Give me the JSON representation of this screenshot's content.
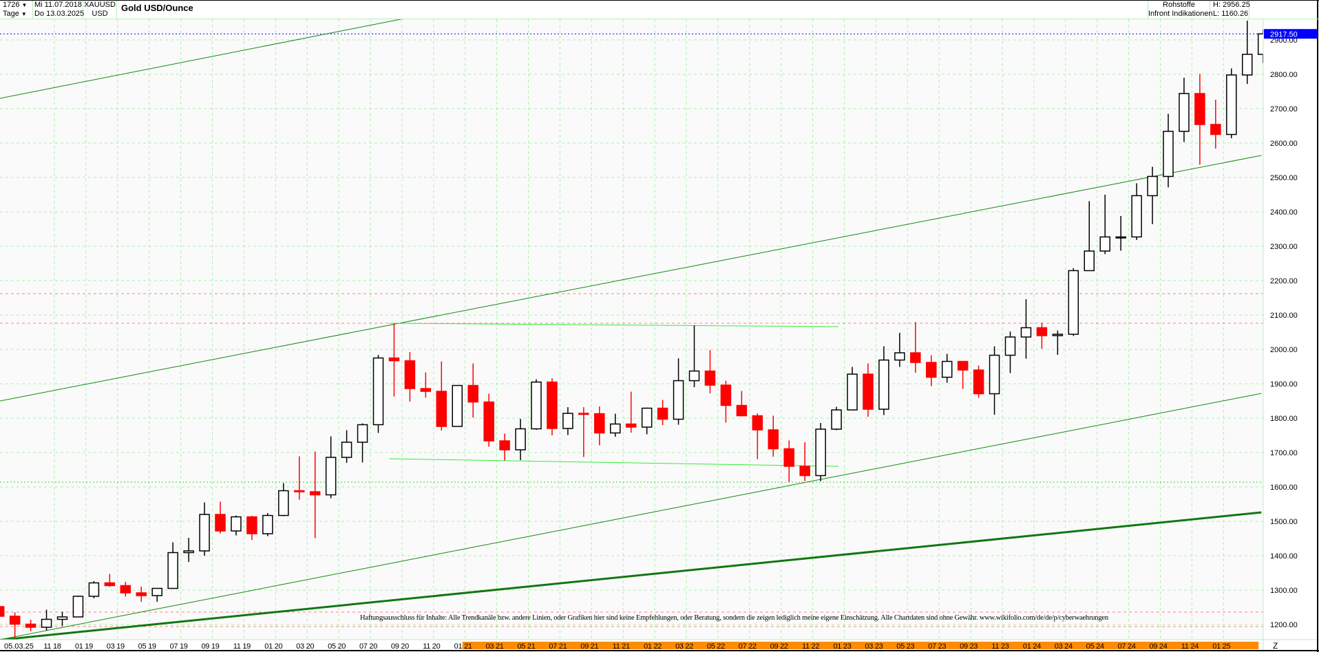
{
  "header": {
    "bars_count": "1726",
    "period": "Tage",
    "start_date": "Mi 11.07.2018",
    "end_date": "Do 13.03.2025",
    "symbol": "XAUUSD",
    "currency": "USD",
    "category": "Rohstoffe",
    "source": "Infront Indikationen",
    "high": "H: 2956.25",
    "low": "L: 1160.26",
    "dropdown_icon": "triangle-down"
  },
  "disclaimer": "Haftungsausschluss für Inhalte: Alle Trendkanäle bzw. andere Linien, oder Grafiken hier sind keine Empfehlungen, oder Beratung, sondern die zeigen lediglich meine eigene Einschätzung. Alle Chartdaten sind ohne Gewähr.  www.wikifolio.com/de/de/p/cyberwaehrungen",
  "chart_data": {
    "type": "candlestick",
    "title": "Gold USD/Ounce",
    "ylim": [
      1160,
      2970
    ],
    "yticks": [
      1200,
      1300,
      1400,
      1500,
      1600,
      1700,
      1800,
      1900,
      2000,
      2100,
      2200,
      2300,
      2400,
      2500,
      2600,
      2700,
      2800,
      2900
    ],
    "ytick_labels": [
      "1200.00",
      "1300.00",
      "1400.00",
      "1500.00",
      "1600.00",
      "1700.00",
      "1800.00",
      "1900.00",
      "2000.00",
      "2100.00",
      "2200.00",
      "2300.00",
      "2400.00",
      "2500.00",
      "2600.00",
      "2700.00",
      "2800.00",
      "2900.00"
    ],
    "first_xlabel": "05.03.25",
    "xticks": [
      {
        "date": "2018-11",
        "label": "11 18"
      },
      {
        "date": "2019-01",
        "label": "01 19"
      },
      {
        "date": "2019-03",
        "label": "03 19"
      },
      {
        "date": "2019-05",
        "label": "05 19"
      },
      {
        "date": "2019-07",
        "label": "07 19"
      },
      {
        "date": "2019-09",
        "label": "09 19"
      },
      {
        "date": "2019-11",
        "label": "11 19"
      },
      {
        "date": "2020-01",
        "label": "01 20"
      },
      {
        "date": "2020-03",
        "label": "03 20"
      },
      {
        "date": "2020-05",
        "label": "05 20"
      },
      {
        "date": "2020-07",
        "label": "07 20"
      },
      {
        "date": "2020-09",
        "label": "09 20"
      },
      {
        "date": "2020-11",
        "label": "11 20"
      },
      {
        "date": "2021-01",
        "label": "01 21"
      },
      {
        "date": "2021-03",
        "label": "03 21"
      },
      {
        "date": "2021-05",
        "label": "05 21"
      },
      {
        "date": "2021-07",
        "label": "07 21"
      },
      {
        "date": "2021-09",
        "label": "09 21"
      },
      {
        "date": "2021-11",
        "label": "11 21"
      },
      {
        "date": "2022-01",
        "label": "01 22"
      },
      {
        "date": "2022-03",
        "label": "03 22"
      },
      {
        "date": "2022-05",
        "label": "05 22"
      },
      {
        "date": "2022-07",
        "label": "07 22"
      },
      {
        "date": "2022-09",
        "label": "09 22"
      },
      {
        "date": "2022-11",
        "label": "11 22"
      },
      {
        "date": "2023-01",
        "label": "01 23"
      },
      {
        "date": "2023-03",
        "label": "03 23"
      },
      {
        "date": "2023-05",
        "label": "05 23"
      },
      {
        "date": "2023-07",
        "label": "07 23"
      },
      {
        "date": "2023-09",
        "label": "09 23"
      },
      {
        "date": "2023-11",
        "label": "11 23"
      },
      {
        "date": "2024-01",
        "label": "01 24"
      },
      {
        "date": "2024-03",
        "label": "03 24"
      },
      {
        "date": "2024-05",
        "label": "05 24"
      },
      {
        "date": "2024-07",
        "label": "07 24"
      },
      {
        "date": "2024-09",
        "label": "09 24"
      },
      {
        "date": "2024-11",
        "label": "11 24"
      },
      {
        "date": "2025-01",
        "label": "01 25"
      }
    ],
    "xaxis_highlight": {
      "from": "2021-01",
      "to": "2025-03-13",
      "color": "#ff8c00"
    },
    "xaxis_end_label": "Z",
    "ohlc_monthly": [
      [
        "2018-07",
        1252,
        1265,
        1211,
        1224
      ],
      [
        "2018-08",
        1224,
        1235,
        1160,
        1201
      ],
      [
        "2018-09",
        1201,
        1214,
        1180,
        1192
      ],
      [
        "2018-10",
        1192,
        1243,
        1182,
        1215
      ],
      [
        "2018-11",
        1215,
        1237,
        1196,
        1222
      ],
      [
        "2018-12",
        1222,
        1284,
        1221,
        1282
      ],
      [
        "2019-01",
        1282,
        1326,
        1276,
        1321
      ],
      [
        "2019-02",
        1321,
        1347,
        1310,
        1313
      ],
      [
        "2019-03",
        1313,
        1324,
        1281,
        1292
      ],
      [
        "2019-04",
        1292,
        1310,
        1266,
        1284
      ],
      [
        "2019-05",
        1284,
        1306,
        1266,
        1305
      ],
      [
        "2019-06",
        1305,
        1439,
        1304,
        1409
      ],
      [
        "2019-07",
        1409,
        1452,
        1382,
        1414
      ],
      [
        "2019-08",
        1414,
        1555,
        1400,
        1520
      ],
      [
        "2019-09",
        1520,
        1557,
        1465,
        1472
      ],
      [
        "2019-10",
        1472,
        1517,
        1459,
        1513
      ],
      [
        "2019-11",
        1513,
        1516,
        1446,
        1464
      ],
      [
        "2019-12",
        1464,
        1524,
        1457,
        1517
      ],
      [
        "2020-01",
        1517,
        1611,
        1515,
        1589
      ],
      [
        "2020-02",
        1589,
        1689,
        1563,
        1586
      ],
      [
        "2020-03",
        1586,
        1703,
        1451,
        1577
      ],
      [
        "2020-04",
        1577,
        1747,
        1567,
        1686
      ],
      [
        "2020-05",
        1686,
        1765,
        1670,
        1730
      ],
      [
        "2020-06",
        1730,
        1785,
        1671,
        1781
      ],
      [
        "2020-07",
        1781,
        1984,
        1757,
        1975
      ],
      [
        "2020-08",
        1975,
        2075,
        1863,
        1967
      ],
      [
        "2020-09",
        1967,
        1992,
        1848,
        1886
      ],
      [
        "2020-10",
        1886,
        1933,
        1860,
        1878
      ],
      [
        "2020-11",
        1878,
        1965,
        1764,
        1776
      ],
      [
        "2020-12",
        1776,
        1896,
        1775,
        1895
      ],
      [
        "2021-01",
        1895,
        1959,
        1802,
        1847
      ],
      [
        "2021-02",
        1847,
        1871,
        1717,
        1734
      ],
      [
        "2021-03",
        1734,
        1755,
        1677,
        1708
      ],
      [
        "2021-04",
        1708,
        1798,
        1678,
        1769
      ],
      [
        "2021-05",
        1769,
        1913,
        1766,
        1905
      ],
      [
        "2021-06",
        1905,
        1916,
        1750,
        1770
      ],
      [
        "2021-07",
        1770,
        1832,
        1751,
        1814
      ],
      [
        "2021-08",
        1814,
        1832,
        1687,
        1813
      ],
      [
        "2021-09",
        1813,
        1834,
        1721,
        1757
      ],
      [
        "2021-10",
        1757,
        1813,
        1746,
        1783
      ],
      [
        "2021-11",
        1783,
        1877,
        1758,
        1774
      ],
      [
        "2021-12",
        1774,
        1831,
        1753,
        1829
      ],
      [
        "2022-01",
        1829,
        1853,
        1780,
        1797
      ],
      [
        "2022-02",
        1797,
        1974,
        1781,
        1909
      ],
      [
        "2022-03",
        1909,
        2070,
        1890,
        1937
      ],
      [
        "2022-04",
        1937,
        1998,
        1872,
        1896
      ],
      [
        "2022-05",
        1896,
        1909,
        1787,
        1837
      ],
      [
        "2022-06",
        1837,
        1879,
        1805,
        1807
      ],
      [
        "2022-07",
        1807,
        1814,
        1681,
        1766
      ],
      [
        "2022-08",
        1766,
        1807,
        1688,
        1711
      ],
      [
        "2022-09",
        1711,
        1735,
        1615,
        1660
      ],
      [
        "2022-10",
        1660,
        1730,
        1617,
        1633
      ],
      [
        "2022-11",
        1633,
        1786,
        1617,
        1768
      ],
      [
        "2022-12",
        1768,
        1833,
        1765,
        1824
      ],
      [
        "2023-01",
        1824,
        1949,
        1823,
        1928
      ],
      [
        "2023-02",
        1928,
        1959,
        1804,
        1826
      ],
      [
        "2023-03",
        1826,
        2009,
        1809,
        1969
      ],
      [
        "2023-04",
        1969,
        2048,
        1949,
        1990
      ],
      [
        "2023-05",
        1990,
        2079,
        1932,
        1962
      ],
      [
        "2023-06",
        1962,
        1983,
        1893,
        1919
      ],
      [
        "2023-07",
        1919,
        1987,
        1903,
        1965
      ],
      [
        "2023-08",
        1965,
        1966,
        1885,
        1940
      ],
      [
        "2023-09",
        1940,
        1953,
        1859,
        1871
      ],
      [
        "2023-10",
        1871,
        2009,
        1810,
        1983
      ],
      [
        "2023-11",
        1983,
        2052,
        1931,
        2036
      ],
      [
        "2023-12",
        2036,
        2146,
        1973,
        2063
      ],
      [
        "2024-01",
        2063,
        2078,
        2002,
        2040
      ],
      [
        "2024-02",
        2040,
        2055,
        1984,
        2044
      ],
      [
        "2024-03",
        2044,
        2236,
        2039,
        2229
      ],
      [
        "2024-04",
        2229,
        2431,
        2228,
        2286
      ],
      [
        "2024-05",
        2286,
        2450,
        2277,
        2327
      ],
      [
        "2024-06",
        2327,
        2388,
        2287,
        2327
      ],
      [
        "2024-07",
        2327,
        2483,
        2318,
        2447
      ],
      [
        "2024-08",
        2447,
        2531,
        2364,
        2503
      ],
      [
        "2024-09",
        2503,
        2685,
        2471,
        2634
      ],
      [
        "2024-10",
        2634,
        2790,
        2603,
        2744
      ],
      [
        "2024-11",
        2744,
        2801,
        2537,
        2654
      ],
      [
        "2024-12",
        2654,
        2726,
        2584,
        2625
      ],
      [
        "2025-01",
        2625,
        2817,
        2614,
        2798
      ],
      [
        "2025-02",
        2798,
        2956,
        2772,
        2858
      ],
      [
        "2025-03",
        2858,
        2930,
        2833,
        2917.5
      ]
    ],
    "last_price": 2917.5,
    "last_price_label": "2917.50",
    "horizontal_levels": [
      {
        "price": 2917.5,
        "color": "#0000ff",
        "style": "dotted"
      },
      {
        "price": 2162,
        "color": "#ff8080",
        "style": "dashed"
      },
      {
        "price": 2076,
        "color": "#ff8080",
        "style": "dashed"
      },
      {
        "price": 1614,
        "color": "#33cc33",
        "style": "dotted"
      },
      {
        "price": 1236,
        "color": "#ff8080",
        "style": "dashed"
      },
      {
        "price": 1194,
        "color": "#ff8080",
        "style": "dashed"
      }
    ],
    "trendlines": [
      {
        "from": [
          "2018-07-11",
          2728
        ],
        "to": [
          "2020-09-05",
          2962
        ],
        "color": "#118811",
        "width": 1
      },
      {
        "from": [
          "2018-07-11",
          1848
        ],
        "to": [
          "2025-03-13",
          2564
        ],
        "color": "#118811",
        "width": 1
      },
      {
        "from": [
          "2018-07-11",
          1154
        ],
        "to": [
          "2025-03-13",
          1872
        ],
        "color": "#118811",
        "width": 1
      },
      {
        "from": [
          "2018-07-11",
          1154
        ],
        "to": [
          "2025-03-13",
          1526
        ],
        "color": "#117711",
        "width": 3
      },
      {
        "from": [
          "2020-08-07",
          2076
        ],
        "to": [
          "2022-12-20",
          2066
        ],
        "color": "#33ee33",
        "width": 1
      },
      {
        "from": [
          "2020-08-07",
          1682
        ],
        "to": [
          "2022-12-20",
          1660
        ],
        "color": "#33ee33",
        "width": 1
      }
    ],
    "colors": {
      "up": "#000000",
      "down": "#ff0000",
      "grid": "#aaf0aa",
      "last_price_bg": "#0000ff"
    },
    "grid": true
  }
}
